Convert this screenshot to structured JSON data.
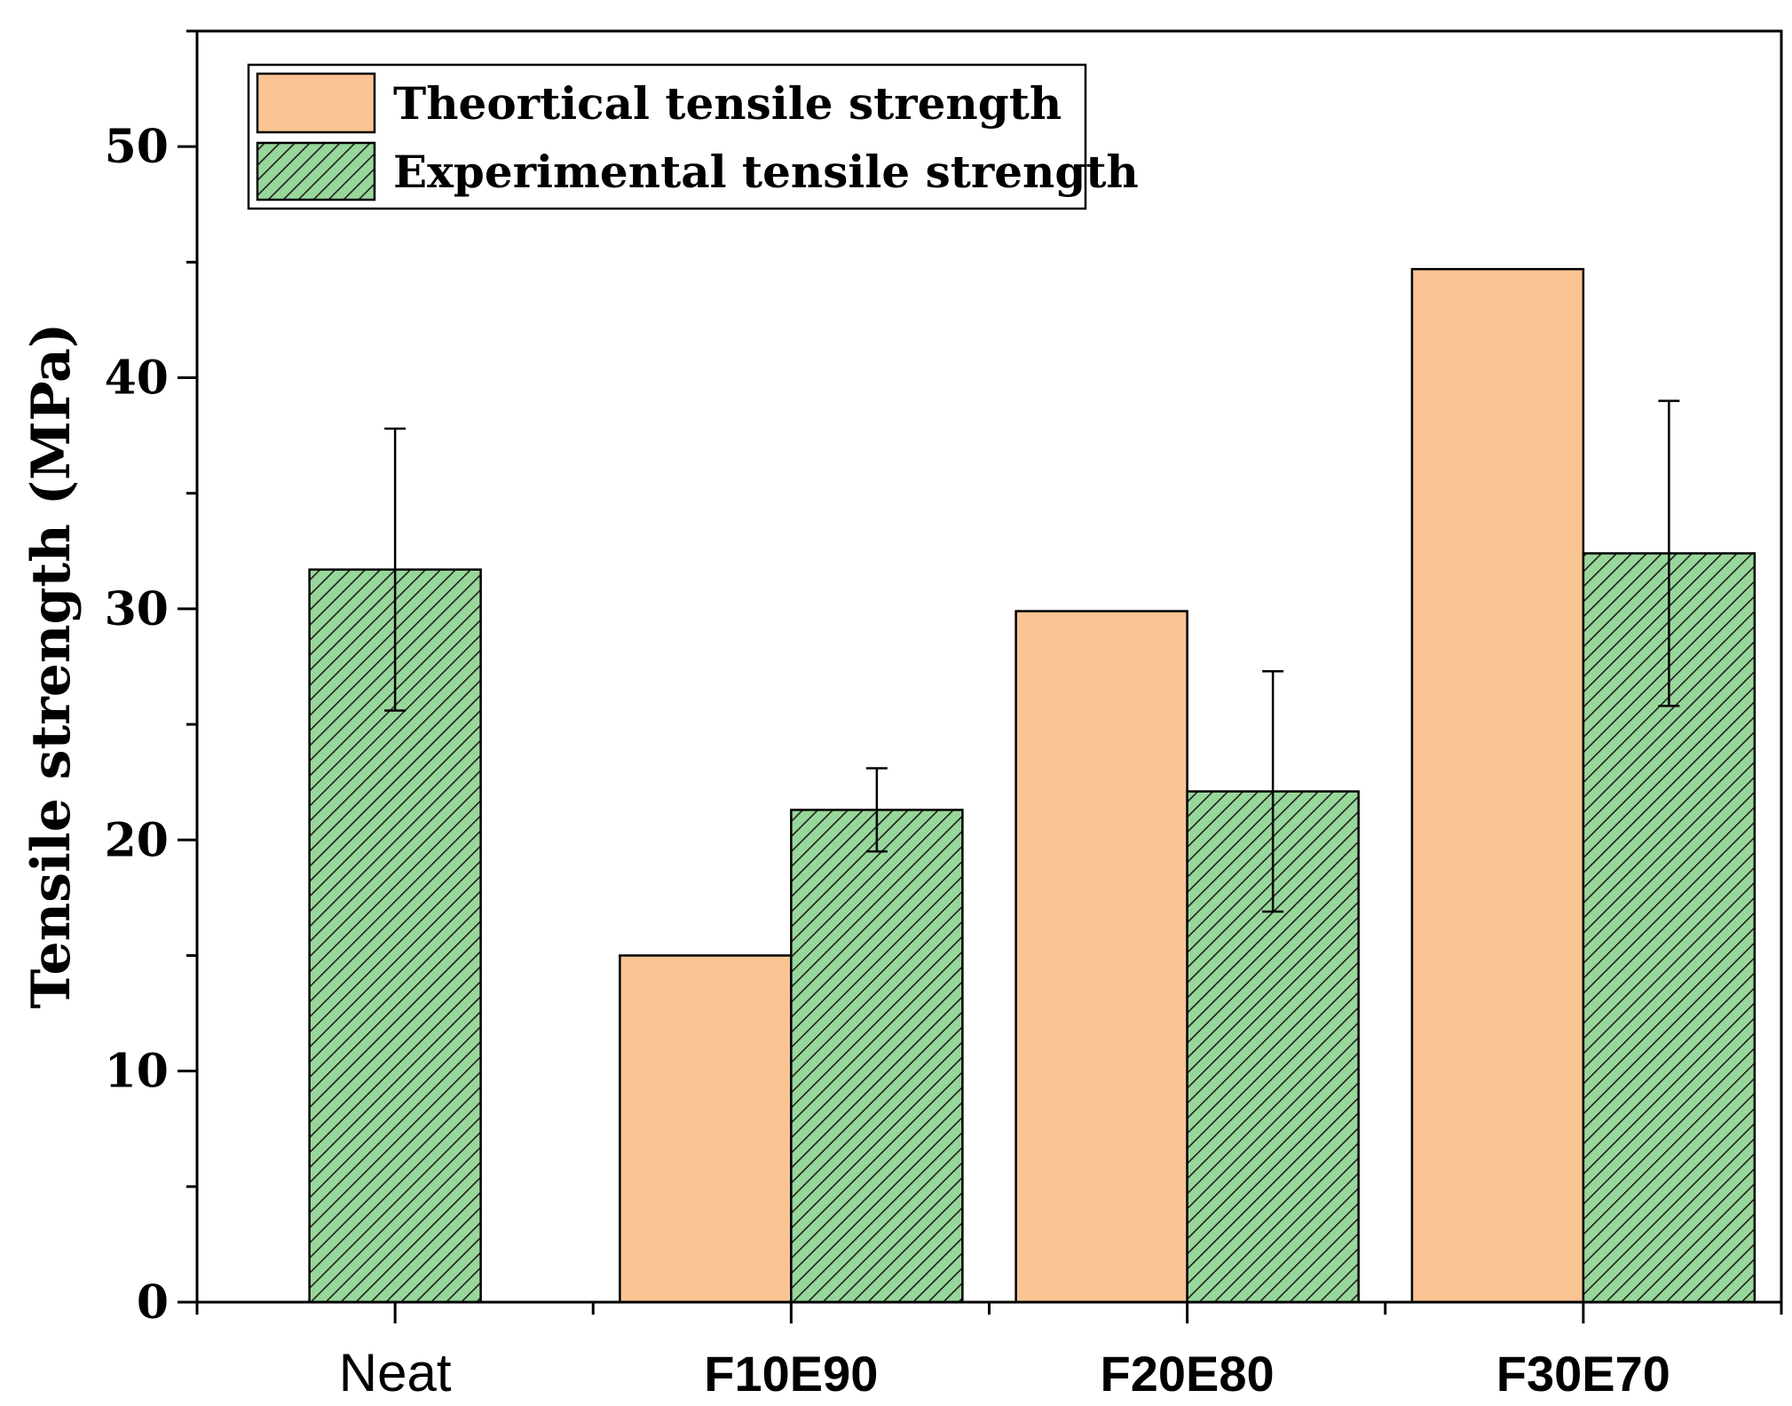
{
  "chart_data": {
    "type": "bar",
    "title": "",
    "xlabel": "",
    "ylabel": "Tensile strength (MPa)",
    "ylim": [
      0,
      55
    ],
    "yticks": [
      0,
      10,
      20,
      30,
      40,
      50
    ],
    "categories": [
      "Neat",
      "F10E90",
      "F20E80",
      "F30E70"
    ],
    "series": [
      {
        "name": "Theortical tensile strength",
        "color": "#fac493",
        "pattern": "solid",
        "values": [
          null,
          15.0,
          29.9,
          44.7
        ]
      },
      {
        "name": "Experimental tensile strength",
        "color": "#98d79a",
        "pattern": "diagonal-hatch",
        "values": [
          31.7,
          21.3,
          22.1,
          32.4
        ],
        "error": [
          6.1,
          1.8,
          5.2,
          6.6
        ]
      }
    ],
    "legend_position": "top-left",
    "grid": false
  }
}
